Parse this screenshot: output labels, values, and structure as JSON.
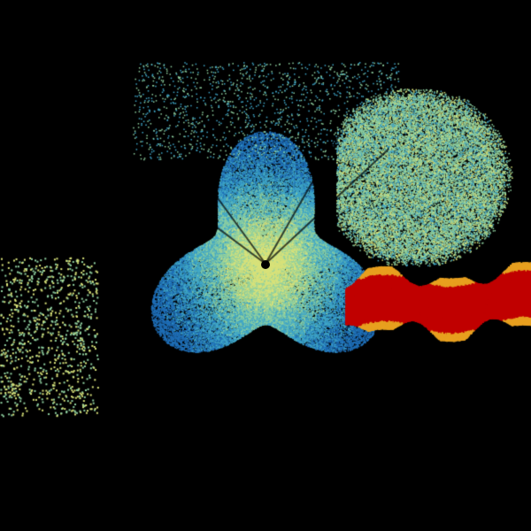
{
  "image": {
    "kind": "radar-reflectivity-scan",
    "background_color": "#000000",
    "palette": {
      "low": "#1f6fb8",
      "low_mid": "#3fa6c8",
      "mid": "#8fd0a0",
      "mid_high": "#d8e27a",
      "high": "#e8a020",
      "very_high": "#c00000"
    }
  }
}
